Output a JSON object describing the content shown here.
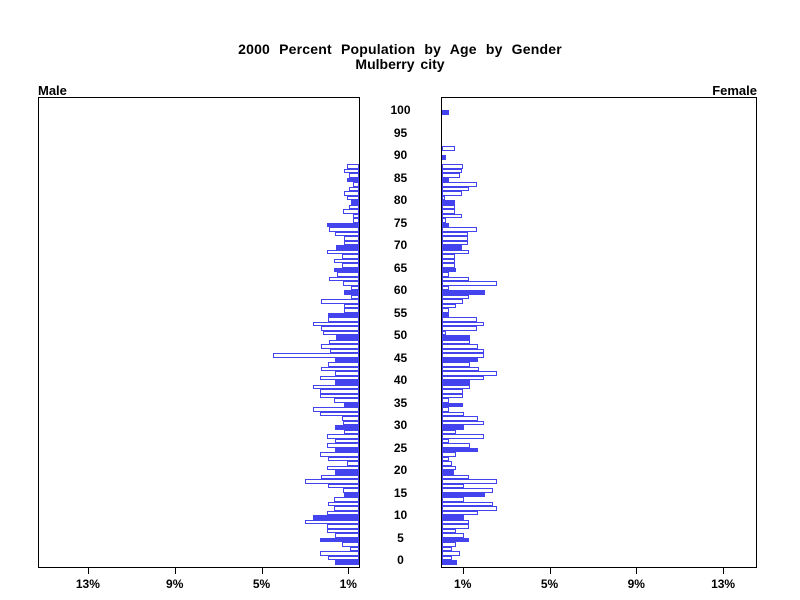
{
  "title": "2000 Percent Population by Age by Gender",
  "subtitle": "Mulberry city",
  "panels": {
    "male": {
      "label": "Male"
    },
    "female": {
      "label": "Female"
    }
  },
  "colors": {
    "bar_blue": "#4444EE",
    "axis_black": "#000000",
    "background": "#FFFFFF"
  },
  "chart_data": {
    "type": "bar",
    "subtype": "population-pyramid",
    "title": "2000 Percent Population by Age by Gender",
    "subtitle": "Mulberry city",
    "x_unit": "percent of population",
    "age_axis": {
      "min": 0,
      "max": 100,
      "tick_step": 5,
      "tick_labels": [
        "0",
        "5",
        "10",
        "15",
        "20",
        "25",
        "30",
        "35",
        "40",
        "45",
        "50",
        "55",
        "60",
        "65",
        "70",
        "75",
        "80",
        "85",
        "90",
        "95",
        "100"
      ]
    },
    "male_axis_tick_labels": [
      "13%",
      "9%",
      "5%",
      "1%"
    ],
    "female_axis_tick_labels": [
      "1%",
      "5%",
      "9%",
      "13%"
    ],
    "male_axis_tick_values": [
      13,
      9,
      5,
      1
    ],
    "female_axis_tick_values": [
      1,
      5,
      9,
      13
    ],
    "highlight_rule": "bars at ages divisible by 5 are solid filled; other ages are outlined",
    "series": [
      {
        "name": "Male",
        "orientation": "right-to-left",
        "ages": "index equals age 0 through 100",
        "values": [
          1.1,
          1.45,
          1.8,
          0.4,
          0.8,
          1.8,
          1.1,
          1.5,
          1.5,
          2.5,
          2.1,
          1.5,
          1.15,
          1.45,
          1.15,
          0.7,
          0.75,
          1.45,
          2.5,
          1.75,
          1.1,
          1.5,
          0.55,
          1.45,
          1.8,
          1.1,
          1.5,
          1.1,
          1.5,
          0.7,
          1.1,
          0.75,
          0.8,
          1.8,
          2.1,
          0.7,
          1.15,
          1.8,
          1.8,
          2.1,
          1.1,
          1.8,
          1.1,
          1.75,
          1.45,
          1.1,
          3.95,
          1.35,
          1.75,
          1.4,
          1.05,
          1.65,
          1.75,
          2.1,
          1.45,
          1.45,
          0.7,
          0.7,
          1.75,
          0.35,
          0.7,
          0.35,
          0.75,
          1.4,
          1.0,
          1.15,
          0.8,
          1.15,
          0.8,
          1.5,
          1.05,
          0.7,
          0.7,
          1.1,
          1.4,
          1.5,
          0.3,
          0.3,
          0.75,
          0.45,
          0.35,
          0.55,
          0.7,
          0.45,
          0.3,
          0.55,
          0.45,
          0.7,
          0.55,
          0,
          0,
          0,
          0,
          0,
          0,
          0,
          0,
          0,
          0,
          0,
          0
        ]
      },
      {
        "name": "Female",
        "orientation": "left-to-right",
        "ages": "index equals age 0 through 100",
        "values": [
          0.7,
          0.45,
          0.85,
          0.45,
          0.65,
          1.25,
          1.0,
          0.65,
          1.25,
          1.25,
          1.0,
          1.65,
          2.55,
          2.35,
          1.0,
          2.0,
          2.35,
          1.0,
          2.55,
          1.25,
          0.55,
          0.65,
          0.45,
          0.3,
          0.65,
          1.65,
          1.3,
          0.3,
          1.95,
          0.65,
          1.0,
          1.95,
          1.65,
          1.0,
          0.3,
          0.95,
          0.3,
          0.95,
          0.95,
          1.3,
          1.3,
          1.95,
          2.55,
          1.7,
          1.3,
          1.65,
          1.95,
          1.95,
          1.65,
          1.3,
          1.3,
          0.2,
          1.6,
          1.95,
          1.6,
          0.3,
          0.3,
          0.65,
          0.95,
          1.25,
          2.0,
          0.3,
          2.55,
          1.25,
          0.3,
          0.65,
          0.6,
          0.6,
          0.6,
          1.25,
          0.9,
          1.2,
          1.2,
          1.2,
          1.6,
          0.3,
          0.2,
          0.9,
          0.6,
          0.6,
          0.6,
          0.15,
          0.9,
          1.25,
          1.6,
          0.3,
          0.85,
          0.9,
          0.95,
          0,
          0.2,
          0,
          0.6,
          0,
          0,
          0,
          0,
          0,
          0,
          0,
          0.3
        ]
      }
    ]
  }
}
